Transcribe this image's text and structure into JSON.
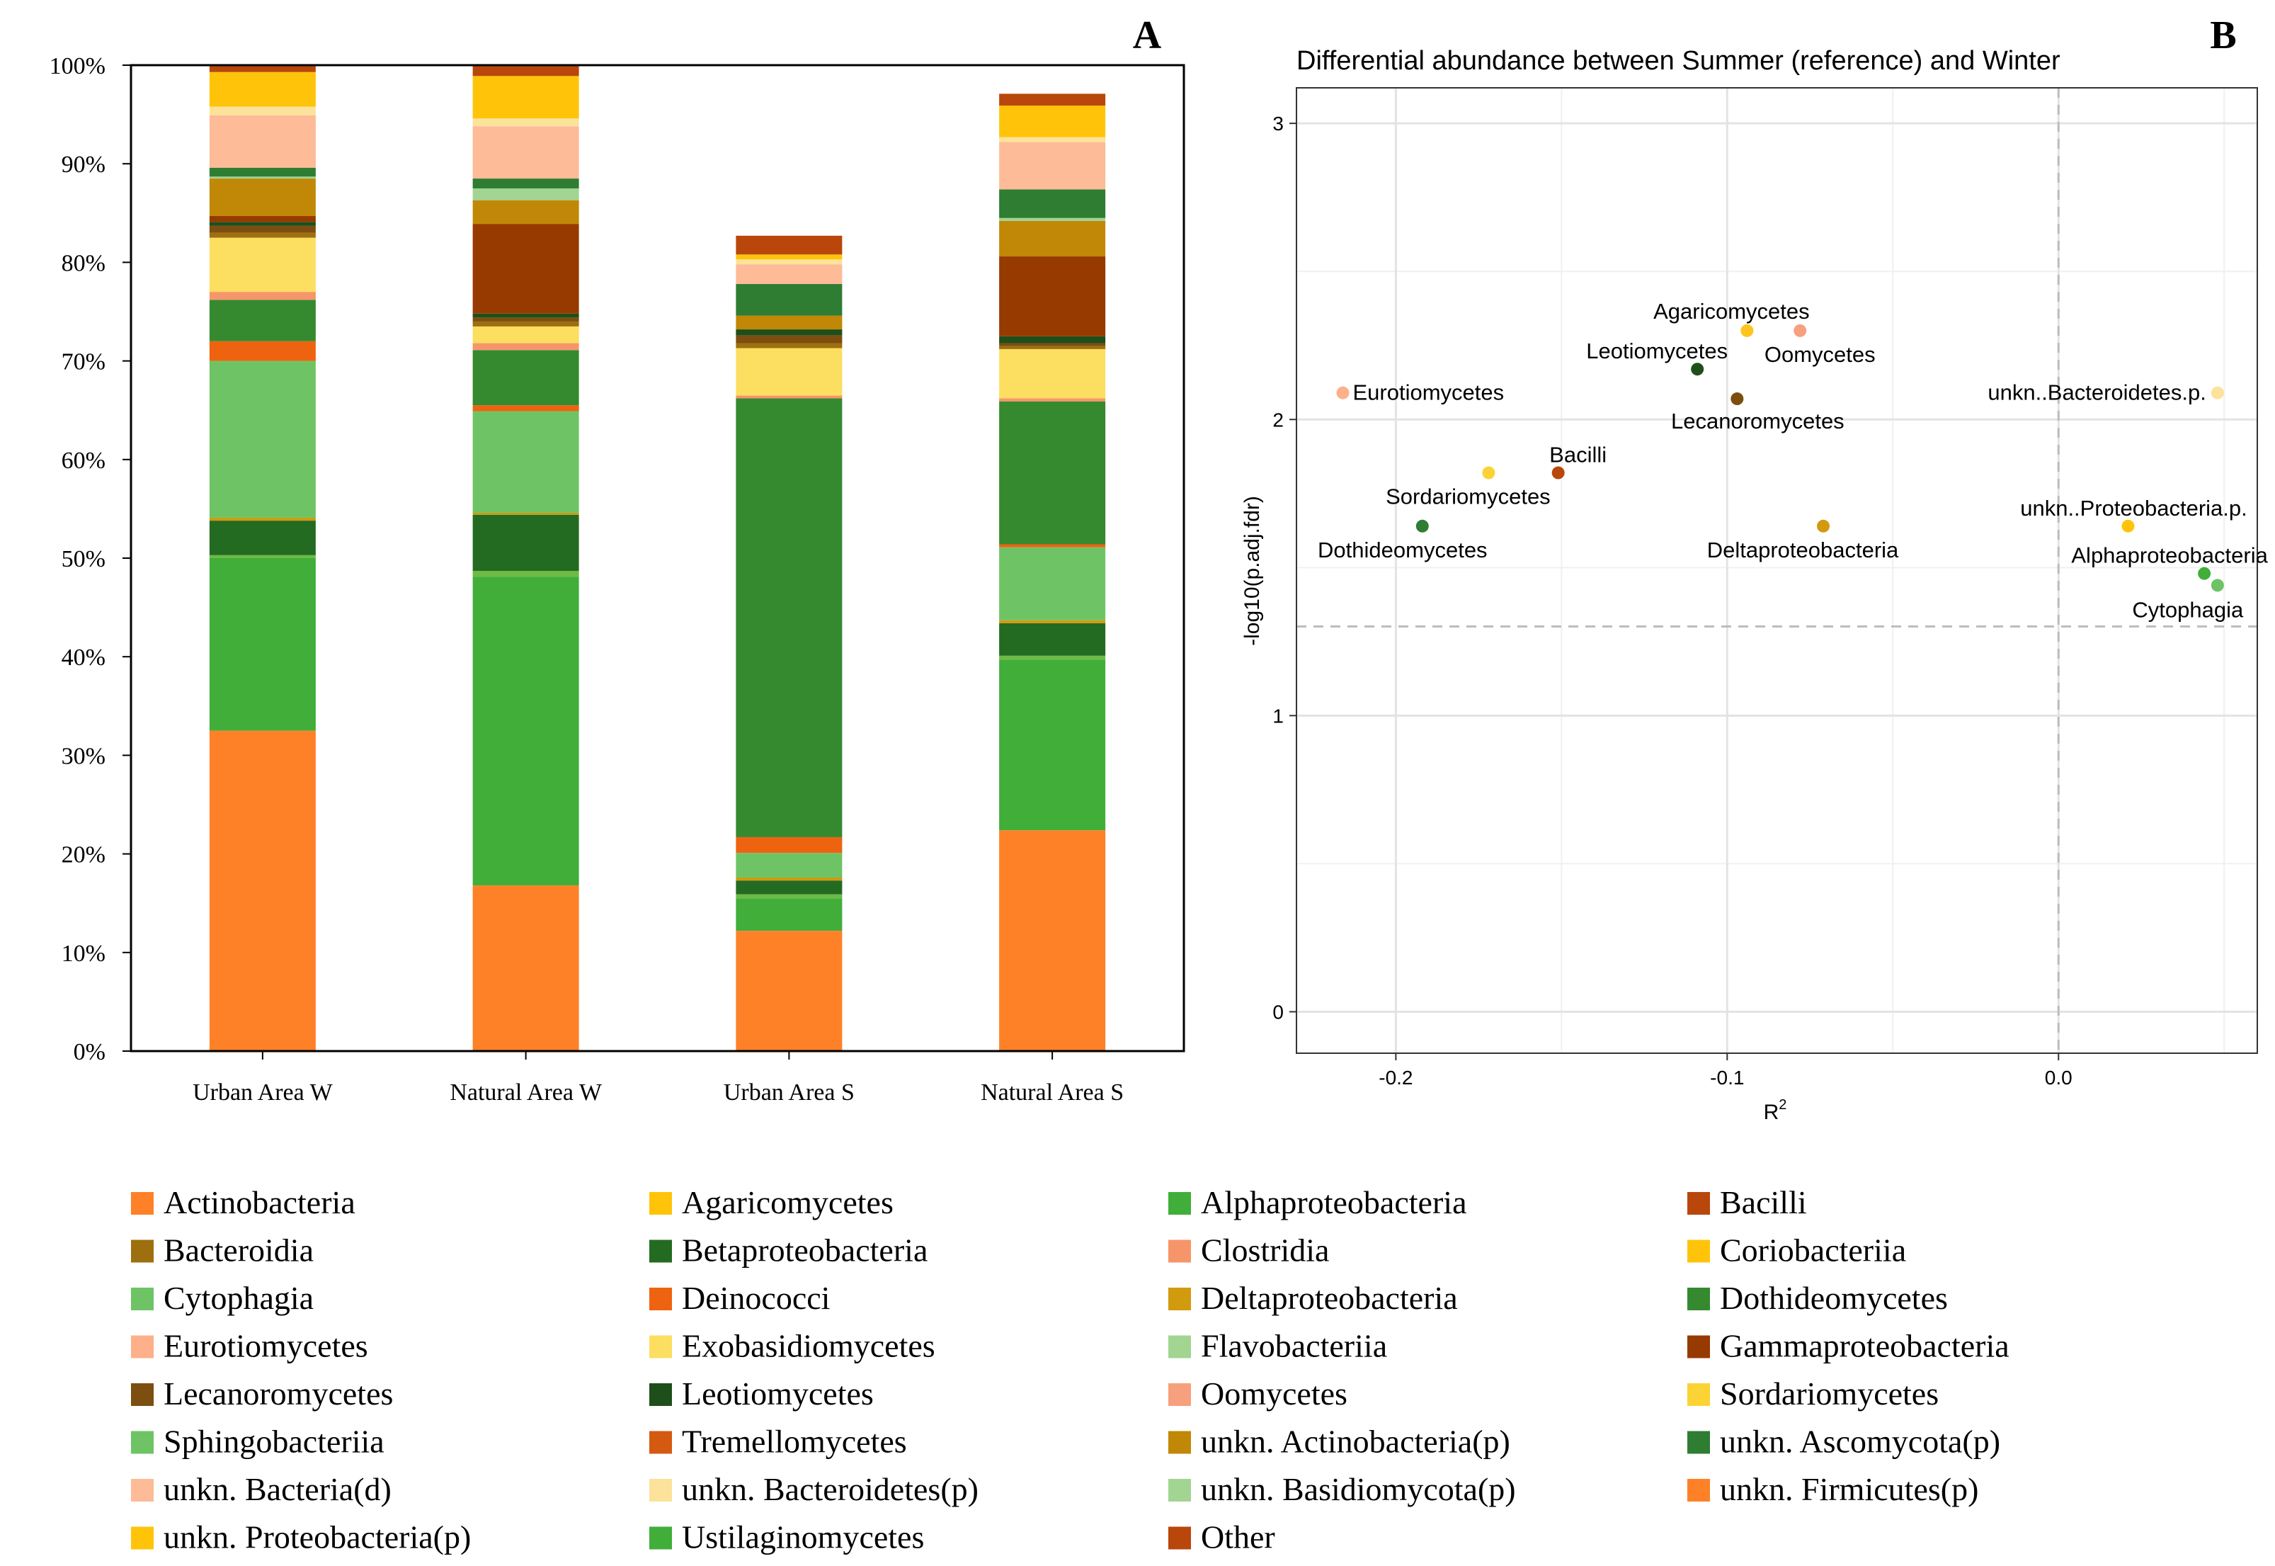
{
  "chart_data": [
    {
      "panel": "A",
      "type": "bar",
      "stacked": true,
      "panel_label": "A",
      "categories": [
        "Urban Area W",
        "Natural Area W",
        "Urban Area S",
        "Natural Area S"
      ],
      "y_ticks": [
        "0%",
        "10%",
        "20%",
        "30%",
        "40%",
        "50%",
        "60%",
        "70%",
        "80%",
        "90%",
        "100%"
      ],
      "ylim": [
        0,
        100
      ],
      "series": [
        {
          "name": "unkn. Firmicutes(p)",
          "color": "#FE8128",
          "values": [
            32.5,
            16.8,
            12.2,
            22.4
          ]
        },
        {
          "name": "Ustilaginomycetes",
          "color": "#41AE3A",
          "values": [
            17.5,
            31.3,
            3.3,
            17.3
          ]
        },
        {
          "name": "Alphaproteobacteria",
          "color": "#6DBA45",
          "values": [
            0.3,
            0.6,
            0.4,
            0.4
          ]
        },
        {
          "name": "Betaproteobacteria",
          "color": "#246B22",
          "values": [
            3.5,
            5.7,
            1.4,
            3.3
          ]
        },
        {
          "name": "Deltaproteobacteria",
          "color": "#D19A0F",
          "values": [
            0.3,
            0.2,
            0.3,
            0.3
          ]
        },
        {
          "name": "Cytophagia",
          "color": "#6EC465",
          "values": [
            15.9,
            10.3,
            2.5,
            7.4
          ]
        },
        {
          "name": "Deinococci",
          "color": "#EE6310",
          "values": [
            2.0,
            0.6,
            1.6,
            0.3
          ]
        },
        {
          "name": "unkn. Ascomycota(p)",
          "color": "#358A2F",
          "values": [
            4.2,
            5.6,
            44.5,
            14.5
          ]
        },
        {
          "name": "Clostridia",
          "color": "#F7956A",
          "values": [
            0.8,
            0.7,
            0.3,
            0.3
          ]
        },
        {
          "name": "Sordariomycetes",
          "color": "#FCDE60",
          "values": [
            5.5,
            1.7,
            4.8,
            5.0
          ]
        },
        {
          "name": "Bacteroidia",
          "color": "#9E6F0F",
          "values": [
            0.5,
            0.5,
            0.5,
            0.3
          ]
        },
        {
          "name": "Lecanoromycetes",
          "color": "#7C4E0F",
          "values": [
            0.7,
            0.4,
            0.8,
            0.3
          ]
        },
        {
          "name": "Leotiomycetes",
          "color": "#1E4F1A",
          "values": [
            0.4,
            0.4,
            0.6,
            0.7
          ]
        },
        {
          "name": "Gammaproteobacteria",
          "color": "#973A00",
          "values": [
            0.6,
            9.1,
            0.0,
            8.1
          ]
        },
        {
          "name": "unkn. Actinobacteria(p)",
          "color": "#C08806",
          "values": [
            3.8,
            2.4,
            1.4,
            3.6
          ]
        },
        {
          "name": "unkn. Basidiomycota(p)",
          "color": "#A2D492",
          "values": [
            0.2,
            1.2,
            0.0,
            0.3
          ]
        },
        {
          "name": "Dothideomycetes",
          "color": "#2E7D32",
          "values": [
            0.9,
            1.0,
            3.2,
            2.9
          ]
        },
        {
          "name": "unkn. Bacteria(d)",
          "color": "#FDBB97",
          "values": [
            5.3,
            5.3,
            2.0,
            4.8
          ]
        },
        {
          "name": "unkn. Bacteroidetes(p)",
          "color": "#FCE29A",
          "values": [
            0.9,
            0.8,
            0.5,
            0.5
          ]
        },
        {
          "name": "Coriobacteriia",
          "color": "#FFC40A",
          "values": [
            3.5,
            4.3,
            0.5,
            3.2
          ]
        },
        {
          "name": "Other",
          "color": "#B9470B",
          "values": [
            0.7,
            1.1,
            1.9,
            1.2
          ]
        }
      ]
    },
    {
      "panel": "B",
      "type": "scatter",
      "panel_label": "B",
      "title": "Differential abundance between Summer (reference) and Winter",
      "xlabel": "R",
      "xlabel_sup": "2",
      "ylabel": "-log10(p.adj.fdr)",
      "xlim": [
        -0.23,
        0.06
      ],
      "ylim": [
        -0.14,
        3.12
      ],
      "x_ticks": [
        -0.2,
        -0.1,
        0.0
      ],
      "x_tick_labels": [
        "-0.2",
        "-0.1",
        "0.0"
      ],
      "y_ticks": [
        0,
        1,
        2,
        3
      ],
      "y_tick_labels": [
        "0",
        "1",
        "2",
        "3"
      ],
      "ref_vline": 0.0,
      "ref_hline": 1.301,
      "points": [
        {
          "label": "Eurotiomycetes",
          "x": -0.216,
          "y": 2.09,
          "color": "#FDB089",
          "label_dx": 14,
          "label_dy": 10,
          "anchor": "start"
        },
        {
          "label": "Agaricomycetes",
          "x": -0.094,
          "y": 2.3,
          "color": "#FFC420",
          "label_dx": -22,
          "label_dy": -17,
          "anchor": "middle"
        },
        {
          "label": "Oomycetes",
          "x": -0.078,
          "y": 2.3,
          "color": "#F7A07E",
          "label_dx": 28,
          "label_dy": 44,
          "anchor": "middle"
        },
        {
          "label": "Leotiomycetes",
          "x": -0.109,
          "y": 2.17,
          "color": "#1E4F1A",
          "label_dx": -57,
          "label_dy": -15,
          "anchor": "middle"
        },
        {
          "label": "Lecanoromycetes",
          "x": -0.097,
          "y": 2.07,
          "color": "#7C4E0F",
          "label_dx": 29,
          "label_dy": 42,
          "anchor": "middle"
        },
        {
          "label": "Bacilli",
          "x": -0.151,
          "y": 1.82,
          "color": "#B9470B",
          "label_dx": 28,
          "label_dy": -15,
          "anchor": "middle"
        },
        {
          "label": "Sordariomycetes",
          "x": -0.172,
          "y": 1.82,
          "color": "#FCD335",
          "label_dx": -29,
          "label_dy": 44,
          "anchor": "middle"
        },
        {
          "label": "Dothideomycetes",
          "x": -0.192,
          "y": 1.64,
          "color": "#2E7D32",
          "label_dx": -28,
          "label_dy": 44,
          "anchor": "middle"
        },
        {
          "label": "Deltaproteobacteria",
          "x": -0.071,
          "y": 1.64,
          "color": "#D19A0F",
          "label_dx": -29,
          "label_dy": 44,
          "anchor": "middle"
        },
        {
          "label": "unkn..Bacteroidetes.p.",
          "x": 0.048,
          "y": 2.09,
          "color": "#FCE29A",
          "label_dx": -16,
          "label_dy": 10,
          "anchor": "end"
        },
        {
          "label": "unkn..Proteobacteria.p.",
          "x": 0.021,
          "y": 1.64,
          "color": "#FFC40A",
          "label_dx": 8,
          "label_dy": -15,
          "anchor": "middle"
        },
        {
          "label": "Alphaproteobacteria",
          "x": 0.044,
          "y": 1.48,
          "color": "#41AE3A",
          "label_dx": -49,
          "label_dy": -15,
          "anchor": "middle"
        },
        {
          "label": "Cytophagia",
          "x": 0.048,
          "y": 1.44,
          "color": "#6EC465",
          "label_dx": -42,
          "label_dy": 45,
          "anchor": "middle"
        }
      ]
    }
  ],
  "legend": {
    "items": [
      {
        "label": "Actinobacteria",
        "color": "#FE8128"
      },
      {
        "label": "Agaricomycetes",
        "color": "#FFC40A"
      },
      {
        "label": "Alphaproteobacteria",
        "color": "#41AE3A"
      },
      {
        "label": "Bacilli",
        "color": "#B9470B"
      },
      {
        "label": "Bacteroidia",
        "color": "#9E6F0F"
      },
      {
        "label": "Betaproteobacteria",
        "color": "#246B22"
      },
      {
        "label": "Clostridia",
        "color": "#F7956A"
      },
      {
        "label": "Coriobacteriia",
        "color": "#FFC40A"
      },
      {
        "label": "Cytophagia",
        "color": "#6EC465"
      },
      {
        "label": "Deinococci",
        "color": "#EE6310"
      },
      {
        "label": "Deltaproteobacteria",
        "color": "#D19A0F"
      },
      {
        "label": "Dothideomycetes",
        "color": "#358A2F"
      },
      {
        "label": "Eurotiomycetes",
        "color": "#FDB089"
      },
      {
        "label": "Exobasidiomycetes",
        "color": "#FCDE60"
      },
      {
        "label": "Flavobacteriia",
        "color": "#A2D492"
      },
      {
        "label": "Gammaproteobacteria",
        "color": "#973A00"
      },
      {
        "label": "Lecanoromycetes",
        "color": "#7C4E0F"
      },
      {
        "label": "Leotiomycetes",
        "color": "#1E4F1A"
      },
      {
        "label": "Oomycetes",
        "color": "#F7A07E"
      },
      {
        "label": "Sordariomycetes",
        "color": "#FCD335"
      },
      {
        "label": "Sphingobacteriia",
        "color": "#6EC465"
      },
      {
        "label": "Tremellomycetes",
        "color": "#D45A12"
      },
      {
        "label": "unkn. Actinobacteria(p)",
        "color": "#C08806"
      },
      {
        "label": "unkn. Ascomycota(p)",
        "color": "#2E7D32"
      },
      {
        "label": "unkn. Bacteria(d)",
        "color": "#FDBB97"
      },
      {
        "label": "unkn. Bacteroidetes(p)",
        "color": "#FCE29A"
      },
      {
        "label": "unkn. Basidiomycota(p)",
        "color": "#A2D492"
      },
      {
        "label": "unkn. Firmicutes(p)",
        "color": "#FE8128"
      },
      {
        "label": "unkn. Proteobacteria(p)",
        "color": "#FFC40A"
      },
      {
        "label": "Ustilaginomycetes",
        "color": "#41AE3A"
      },
      {
        "label": "Other",
        "color": "#B9470B"
      }
    ]
  }
}
